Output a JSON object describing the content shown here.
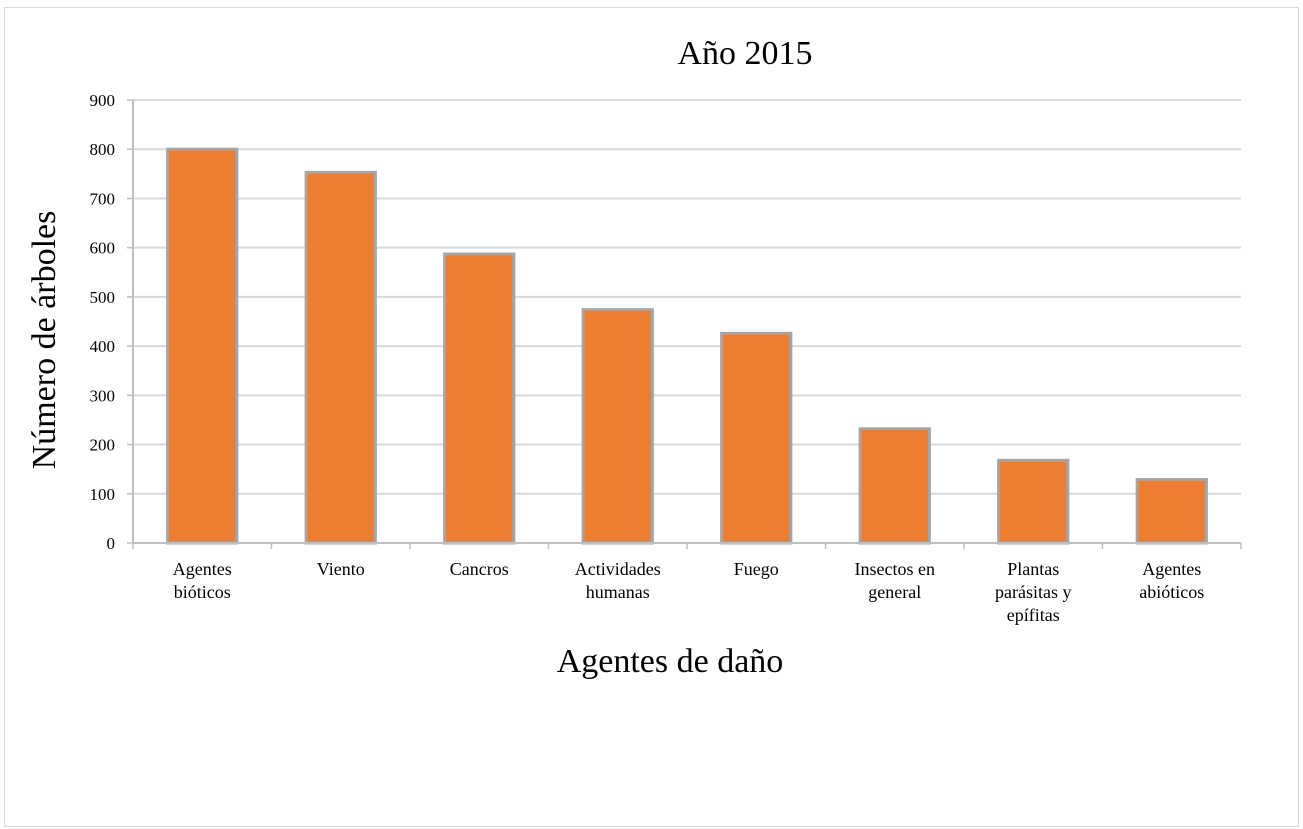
{
  "chart_data": {
    "type": "bar",
    "title": "Año 2015",
    "xlabel": "Agentes de daño",
    "ylabel": "Número de árboles",
    "categories": [
      [
        "Agentes",
        "bióticos"
      ],
      [
        "Viento"
      ],
      [
        "Cancros"
      ],
      [
        "Actividades",
        "humanas"
      ],
      [
        "Fuego"
      ],
      [
        "Insectos en",
        "general"
      ],
      [
        "Plantas",
        "parásitas y",
        "epífitas"
      ],
      [
        "Agentes",
        "abióticos"
      ]
    ],
    "values": [
      800,
      753,
      587,
      474,
      426,
      232,
      168,
      129
    ],
    "ylim": [
      0,
      900
    ],
    "yticks": [
      "0",
      "100",
      "200",
      "300",
      "400",
      "500",
      "600",
      "700",
      "800",
      "900"
    ],
    "grid": true,
    "legend": "none",
    "colors": {
      "bar_fill": "#ED7D31",
      "bar_stroke": "#A5A5A5",
      "grid": "#D9D9D9",
      "axis": "#BFBFBF"
    }
  }
}
